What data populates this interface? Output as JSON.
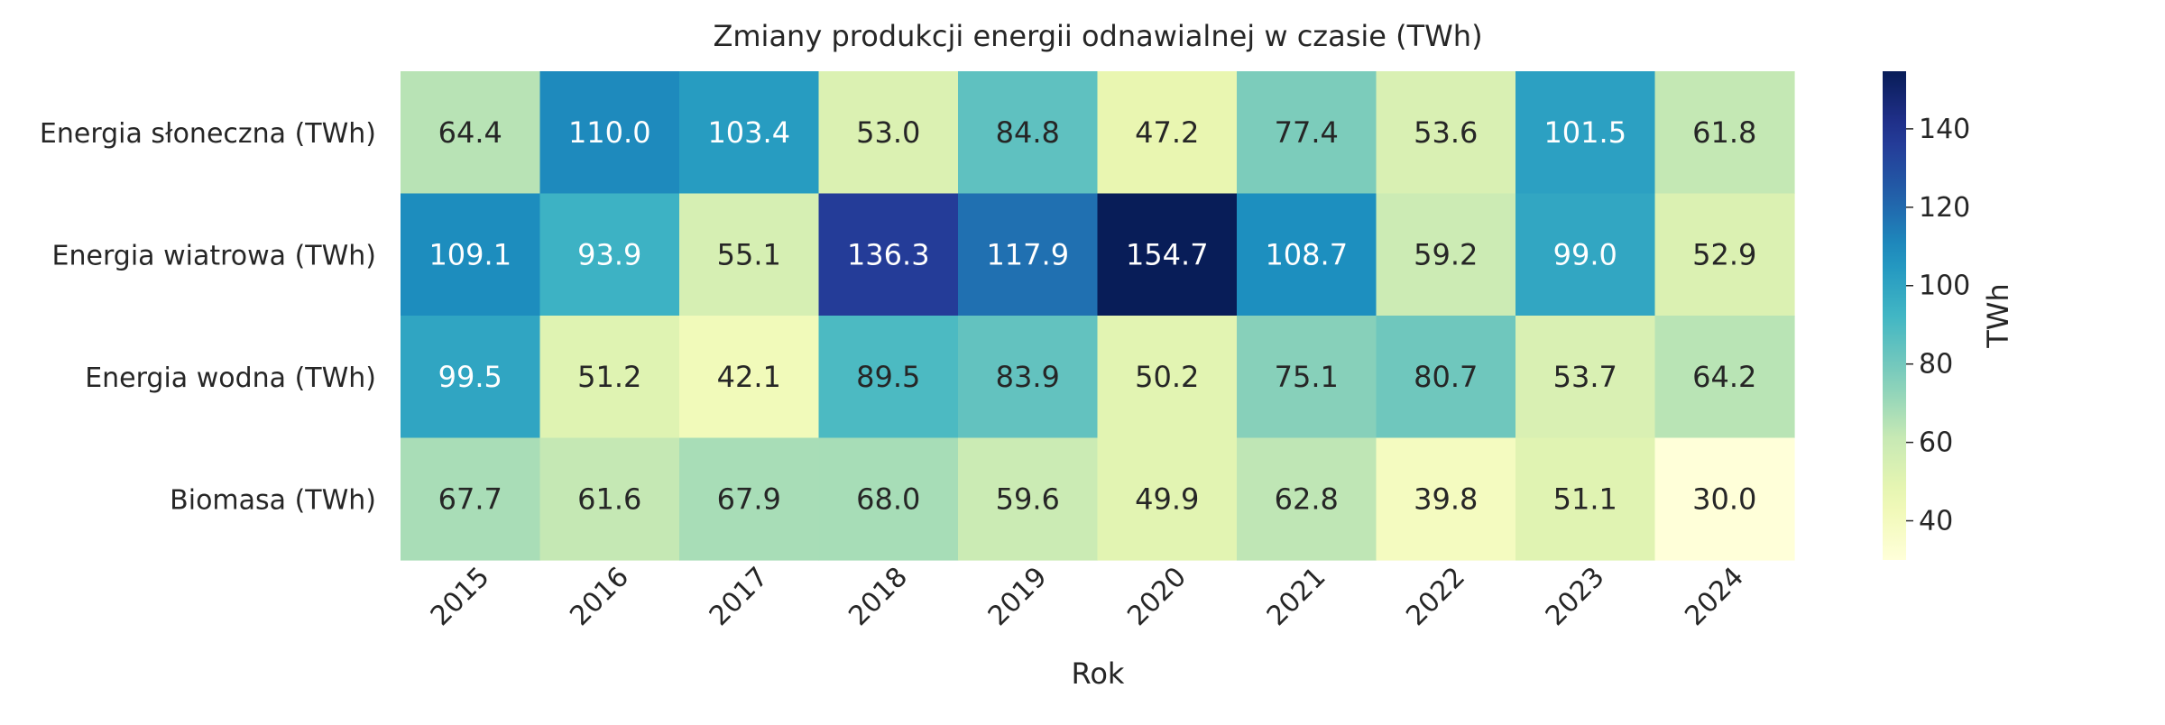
{
  "chart_data": {
    "type": "heatmap",
    "title": "Zmiany produkcji energii odnawialnej w czasie (TWh)",
    "xlabel": "Rok",
    "ylabel": "",
    "x": [
      "2015",
      "2016",
      "2017",
      "2018",
      "2019",
      "2020",
      "2021",
      "2022",
      "2023",
      "2024"
    ],
    "y": [
      "Energia słoneczna (TWh)",
      "Energia wiatrowa (TWh)",
      "Energia wodna (TWh)",
      "Biomasa (TWh)"
    ],
    "values": [
      [
        64.4,
        110.0,
        103.4,
        53.0,
        84.8,
        47.2,
        77.4,
        53.6,
        101.5,
        61.8
      ],
      [
        109.1,
        93.9,
        55.1,
        136.3,
        117.9,
        154.7,
        108.7,
        59.2,
        99.0,
        52.9
      ],
      [
        99.5,
        51.2,
        42.1,
        89.5,
        83.9,
        50.2,
        75.1,
        80.7,
        53.7,
        64.2
      ],
      [
        67.7,
        61.6,
        67.9,
        68.0,
        59.6,
        49.9,
        62.8,
        39.8,
        51.1,
        30.0
      ]
    ],
    "value_format": "0.0",
    "colormap": "YlGnBu",
    "vmin": 30.0,
    "vmax": 154.7,
    "colorbar": {
      "label": "TWh",
      "ticks": [
        40,
        60,
        80,
        100,
        120,
        140
      ]
    },
    "legend": "none",
    "grid": false
  }
}
